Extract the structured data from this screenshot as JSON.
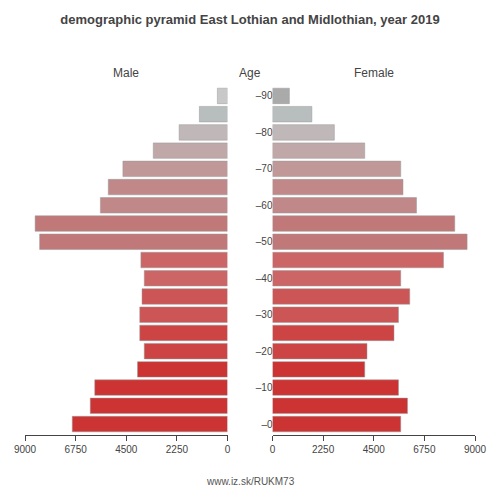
{
  "chart_data": {
    "type": "bar",
    "orientation": "horizontal",
    "title": "demographic pyramid East Lothian and Midlothian, year 2019",
    "ylabel": "Age",
    "annotations": [
      "www.iz.sk/RUKM73"
    ],
    "categories": [
      "–0",
      null,
      "–10",
      null,
      "–20",
      null,
      "–30",
      null,
      "–40",
      null,
      "–50",
      null,
      "–60",
      null,
      "–70",
      null,
      "–80",
      null,
      "–90"
    ],
    "series": [
      {
        "name": "Male",
        "colors": [
          "#cc3333",
          "#cc3333",
          "#cc3333",
          "#cc3333",
          "#cc4444",
          "#cc4444",
          "#cc5555",
          "#cc5555",
          "#cc6666",
          "#cc6666",
          "#c07878",
          "#c07878",
          "#c08888",
          "#c08888",
          "#c09898",
          "#c0a8a8",
          "#c0b8b8",
          "#b8bebe",
          "#c8c8c8"
        ],
        "values": [
          6900,
          6100,
          5900,
          4000,
          3700,
          3900,
          3900,
          3800,
          3700,
          3850,
          8350,
          8550,
          5650,
          5300,
          4650,
          3300,
          2150,
          1250,
          450
        ]
      },
      {
        "name": "Female",
        "colors": [
          "#cc3333",
          "#cc3333",
          "#cc3333",
          "#cc3333",
          "#cc4444",
          "#cc4444",
          "#cc5555",
          "#cc5555",
          "#cc6666",
          "#cc6666",
          "#c07878",
          "#c07878",
          "#c08888",
          "#c08888",
          "#c09898",
          "#c0a8a8",
          "#c0b8b8",
          "#b8bebe",
          "#aaaaaa"
        ],
        "values": [
          5700,
          6000,
          5600,
          4100,
          4200,
          5400,
          5600,
          6100,
          5700,
          7600,
          8650,
          8100,
          6400,
          5800,
          5700,
          4100,
          2750,
          1750,
          750
        ]
      }
    ],
    "xlim": [
      0,
      9000
    ],
    "xticks": [
      0,
      2250,
      4500,
      6750,
      9000
    ],
    "grid": false
  }
}
